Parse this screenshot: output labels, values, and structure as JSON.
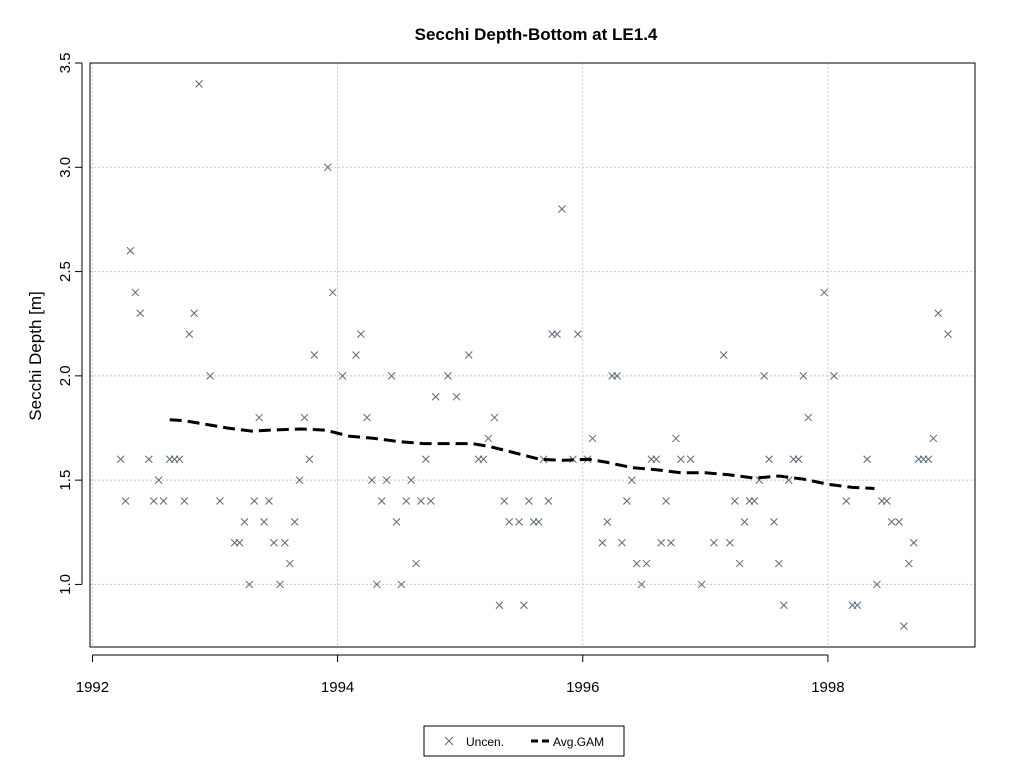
{
  "chart_data": {
    "type": "scatter",
    "title": "Secchi Depth-Bottom at LE1.4",
    "xlabel": "",
    "ylabel": "Secchi Depth [m]",
    "xlim": [
      1991.98,
      1999.2
    ],
    "ylim": [
      0.7,
      3.5
    ],
    "x_ticks": [
      1992,
      1994,
      1996,
      1998
    ],
    "y_ticks": [
      1.0,
      1.5,
      2.0,
      2.5,
      3.0,
      3.5
    ],
    "x_tick_labels": [
      "1992",
      "1994",
      "1996",
      "1998"
    ],
    "y_tick_labels": [
      "1.0",
      "1.5",
      "2.0",
      "2.5",
      "3.0",
      "3.5"
    ],
    "grid": true,
    "legend_position": "bottom-center",
    "marker_color": "#5a6a7a",
    "line_color": "#000000",
    "series": [
      {
        "name": "Uncen.",
        "kind": "points",
        "marker": "x",
        "points": [
          [
            1992.23,
            1.6
          ],
          [
            1992.27,
            1.4
          ],
          [
            1992.31,
            2.6
          ],
          [
            1992.35,
            2.4
          ],
          [
            1992.39,
            2.3
          ],
          [
            1992.46,
            1.6
          ],
          [
            1992.5,
            1.4
          ],
          [
            1992.54,
            1.5
          ],
          [
            1992.58,
            1.4
          ],
          [
            1992.63,
            1.6
          ],
          [
            1992.67,
            1.6
          ],
          [
            1992.71,
            1.6
          ],
          [
            1992.75,
            1.4
          ],
          [
            1992.79,
            2.2
          ],
          [
            1992.83,
            2.3
          ],
          [
            1992.87,
            3.4
          ],
          [
            1992.96,
            2.0
          ],
          [
            1993.04,
            1.4
          ],
          [
            1993.16,
            1.2
          ],
          [
            1993.2,
            1.2
          ],
          [
            1993.24,
            1.3
          ],
          [
            1993.28,
            1.0
          ],
          [
            1993.32,
            1.4
          ],
          [
            1993.36,
            1.8
          ],
          [
            1993.4,
            1.3
          ],
          [
            1993.44,
            1.4
          ],
          [
            1993.48,
            1.2
          ],
          [
            1993.53,
            1.0
          ],
          [
            1993.57,
            1.2
          ],
          [
            1993.61,
            1.1
          ],
          [
            1993.65,
            1.3
          ],
          [
            1993.69,
            1.5
          ],
          [
            1993.73,
            1.8
          ],
          [
            1993.77,
            1.6
          ],
          [
            1993.81,
            2.1
          ],
          [
            1993.92,
            3.0
          ],
          [
            1993.96,
            2.4
          ],
          [
            1994.04,
            2.0
          ],
          [
            1994.15,
            2.1
          ],
          [
            1994.19,
            2.2
          ],
          [
            1994.24,
            1.8
          ],
          [
            1994.28,
            1.5
          ],
          [
            1994.32,
            1.0
          ],
          [
            1994.36,
            1.4
          ],
          [
            1994.4,
            1.5
          ],
          [
            1994.44,
            2.0
          ],
          [
            1994.48,
            1.3
          ],
          [
            1994.52,
            1.0
          ],
          [
            1994.56,
            1.4
          ],
          [
            1994.6,
            1.5
          ],
          [
            1994.64,
            1.1
          ],
          [
            1994.68,
            1.4
          ],
          [
            1994.72,
            1.6
          ],
          [
            1994.76,
            1.4
          ],
          [
            1994.8,
            1.9
          ],
          [
            1994.9,
            2.0
          ],
          [
            1994.97,
            1.9
          ],
          [
            1995.07,
            2.1
          ],
          [
            1995.15,
            1.6
          ],
          [
            1995.19,
            1.6
          ],
          [
            1995.23,
            1.7
          ],
          [
            1995.28,
            1.8
          ],
          [
            1995.32,
            0.9
          ],
          [
            1995.36,
            1.4
          ],
          [
            1995.4,
            1.3
          ],
          [
            1995.48,
            1.3
          ],
          [
            1995.52,
            0.9
          ],
          [
            1995.56,
            1.4
          ],
          [
            1995.6,
            1.3
          ],
          [
            1995.64,
            1.3
          ],
          [
            1995.68,
            1.6
          ],
          [
            1995.72,
            1.4
          ],
          [
            1995.75,
            2.2
          ],
          [
            1995.79,
            2.2
          ],
          [
            1995.83,
            2.8
          ],
          [
            1995.92,
            1.6
          ],
          [
            1995.96,
            2.2
          ],
          [
            1996.04,
            1.6
          ],
          [
            1996.08,
            1.7
          ],
          [
            1996.16,
            1.2
          ],
          [
            1996.2,
            1.3
          ],
          [
            1996.24,
            2.0
          ],
          [
            1996.28,
            2.0
          ],
          [
            1996.32,
            1.2
          ],
          [
            1996.36,
            1.4
          ],
          [
            1996.4,
            1.5
          ],
          [
            1996.44,
            1.1
          ],
          [
            1996.48,
            1.0
          ],
          [
            1996.52,
            1.1
          ],
          [
            1996.56,
            1.6
          ],
          [
            1996.6,
            1.6
          ],
          [
            1996.64,
            1.2
          ],
          [
            1996.68,
            1.4
          ],
          [
            1996.72,
            1.2
          ],
          [
            1996.76,
            1.7
          ],
          [
            1996.8,
            1.6
          ],
          [
            1996.88,
            1.6
          ],
          [
            1996.97,
            1.0
          ],
          [
            1997.07,
            1.2
          ],
          [
            1997.15,
            2.1
          ],
          [
            1997.2,
            1.2
          ],
          [
            1997.24,
            1.4
          ],
          [
            1997.28,
            1.1
          ],
          [
            1997.32,
            1.3
          ],
          [
            1997.36,
            1.4
          ],
          [
            1997.4,
            1.4
          ],
          [
            1997.44,
            1.5
          ],
          [
            1997.48,
            2.0
          ],
          [
            1997.52,
            1.6
          ],
          [
            1997.56,
            1.3
          ],
          [
            1997.6,
            1.1
          ],
          [
            1997.64,
            0.9
          ],
          [
            1997.68,
            1.5
          ],
          [
            1997.72,
            1.6
          ],
          [
            1997.76,
            1.6
          ],
          [
            1997.8,
            2.0
          ],
          [
            1997.84,
            1.8
          ],
          [
            1997.97,
            2.4
          ],
          [
            1998.05,
            2.0
          ],
          [
            1998.15,
            1.4
          ],
          [
            1998.2,
            0.9
          ],
          [
            1998.24,
            0.9
          ],
          [
            1998.32,
            1.6
          ],
          [
            1998.4,
            1.0
          ],
          [
            1998.44,
            1.4
          ],
          [
            1998.48,
            1.4
          ],
          [
            1998.52,
            1.3
          ],
          [
            1998.58,
            1.3
          ],
          [
            1998.62,
            0.8
          ],
          [
            1998.66,
            1.1
          ],
          [
            1998.7,
            1.2
          ],
          [
            1998.74,
            1.6
          ],
          [
            1998.78,
            1.6
          ],
          [
            1998.82,
            1.6
          ],
          [
            1998.86,
            1.7
          ],
          [
            1998.9,
            2.3
          ],
          [
            1998.98,
            2.2
          ]
        ]
      },
      {
        "name": "Avg.GAM",
        "kind": "line",
        "style": "dashed",
        "points": [
          [
            1992.63,
            1.79
          ],
          [
            1992.75,
            1.785
          ],
          [
            1992.9,
            1.77
          ],
          [
            1993.1,
            1.75
          ],
          [
            1993.3,
            1.735
          ],
          [
            1993.45,
            1.74
          ],
          [
            1993.7,
            1.745
          ],
          [
            1993.9,
            1.74
          ],
          [
            1994.1,
            1.71
          ],
          [
            1994.3,
            1.7
          ],
          [
            1994.5,
            1.685
          ],
          [
            1994.7,
            1.675
          ],
          [
            1994.9,
            1.675
          ],
          [
            1995.1,
            1.675
          ],
          [
            1995.25,
            1.66
          ],
          [
            1995.45,
            1.63
          ],
          [
            1995.65,
            1.6
          ],
          [
            1995.85,
            1.595
          ],
          [
            1996.05,
            1.6
          ],
          [
            1996.2,
            1.585
          ],
          [
            1996.4,
            1.56
          ],
          [
            1996.6,
            1.55
          ],
          [
            1996.8,
            1.535
          ],
          [
            1997.0,
            1.535
          ],
          [
            1997.2,
            1.525
          ],
          [
            1997.4,
            1.51
          ],
          [
            1997.6,
            1.52
          ],
          [
            1997.8,
            1.505
          ],
          [
            1998.0,
            1.48
          ],
          [
            1998.2,
            1.465
          ],
          [
            1998.38,
            1.46
          ]
        ]
      }
    ]
  }
}
